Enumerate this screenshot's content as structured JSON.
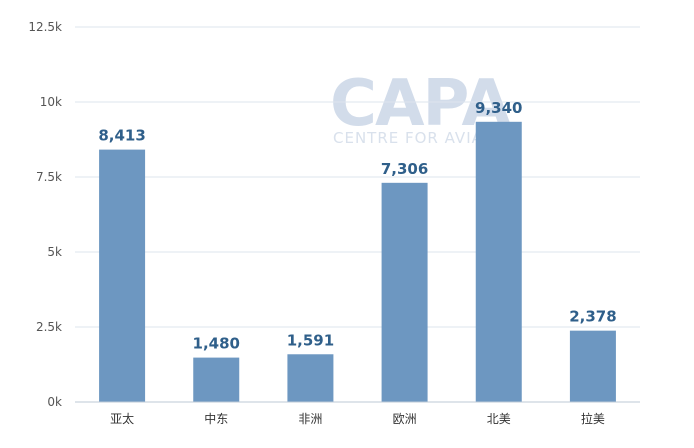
{
  "watermark": {
    "brand": "CAPA",
    "tagline": "CENTRE FOR AVIATION"
  },
  "chart_data": {
    "type": "bar",
    "categories": [
      "亚太",
      "中东",
      "非洲",
      "欧洲",
      "北美",
      "拉美"
    ],
    "values": [
      8413,
      1480,
      1591,
      7306,
      9340,
      2378
    ],
    "data_labels": [
      "8,413",
      "1,480",
      "1,591",
      "7,306",
      "9,340",
      "2,378"
    ],
    "y_ticks": [
      0,
      2500,
      5000,
      7500,
      10000,
      12500
    ],
    "y_tick_labels": [
      "0k",
      "2.5k",
      "5k",
      "7.5k",
      "10k",
      "12.5k"
    ],
    "ylim": [
      0,
      12500
    ],
    "title": "",
    "xlabel": "",
    "ylabel": "",
    "bar_color": "#6d97c1",
    "label_color": "#2f5f8a",
    "grid": true,
    "legend": "none"
  }
}
